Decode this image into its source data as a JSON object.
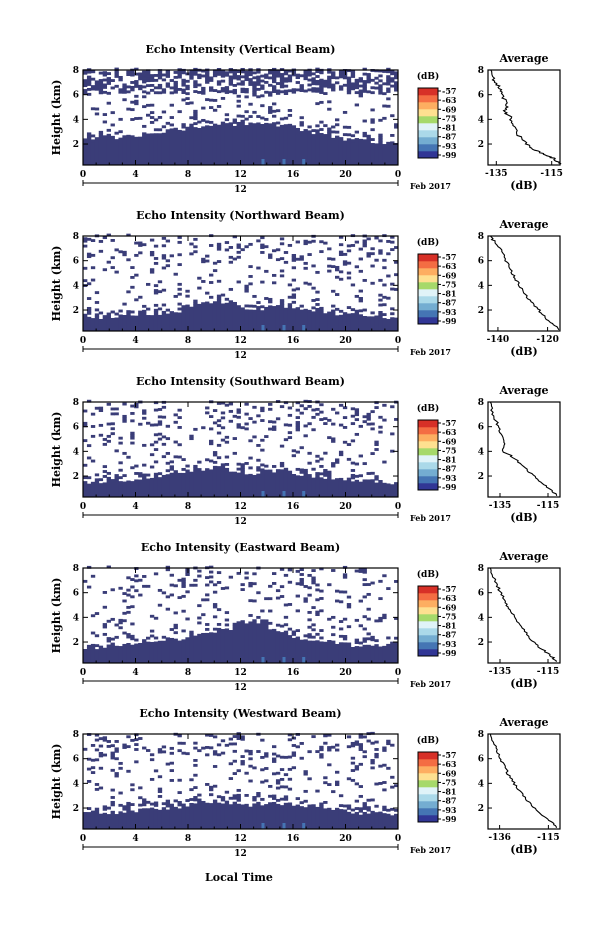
{
  "common": {
    "date_suffix": "Feb 2017",
    "day_label": "12",
    "xlabel": "Local Time",
    "ylabel": "Height (km)",
    "colorbar_unit": "(dB)",
    "avg_title": "Average",
    "avg_xlabel": "(dB)",
    "x_ticks": [
      "0",
      "4",
      "8",
      "12",
      "16",
      "20",
      "0"
    ],
    "y_ticks": [
      "2",
      "4",
      "6",
      "8"
    ],
    "colorbar_ticks": [
      "-57",
      "-63",
      "-69",
      "-75",
      "-81",
      "-87",
      "-93",
      "-99"
    ],
    "colorscale": [
      "#313695",
      "#4575b4",
      "#74add1",
      "#abd9e9",
      "#e0f3f8",
      "#a6d96a",
      "#fee090",
      "#fdae61",
      "#f46d43",
      "#d73027"
    ]
  },
  "chart_data": [
    {
      "type": "heatmap",
      "title": "Echo Intensity (Vertical Beam)",
      "x_range_hours": [
        0,
        24
      ],
      "y_range_km": [
        0.3,
        8.0
      ],
      "low_layer_top_km": [
        2.2,
        2.3,
        2.5,
        2.6,
        2.7,
        2.9,
        3.0,
        3.2,
        3.3,
        3.4,
        3.5,
        3.6,
        3.7,
        3.6,
        3.6,
        3.4,
        3.2,
        3.0,
        2.8,
        2.6,
        2.4,
        2.3,
        2.2,
        2.1,
        2.0
      ],
      "upper_cloud": true,
      "avg_x_ticks": [
        "-135",
        "-115"
      ],
      "avg_x_range": [
        -138,
        -112
      ],
      "avg_profile": [
        [
          -112,
          0.4
        ],
        [
          -114,
          0.8
        ],
        [
          -117,
          1.1
        ],
        [
          -121,
          1.5
        ],
        [
          -124,
          2.0
        ],
        [
          -127,
          2.7
        ],
        [
          -129,
          3.5
        ],
        [
          -130,
          4.2
        ],
        [
          -132,
          4.6
        ],
        [
          -131,
          5.2
        ],
        [
          -133,
          6.0
        ],
        [
          -134,
          6.6
        ],
        [
          -136,
          7.2
        ],
        [
          -137,
          8.0
        ]
      ]
    },
    {
      "type": "heatmap",
      "title": "Echo Intensity (Northward Beam)",
      "x_range_hours": [
        0,
        24
      ],
      "y_range_km": [
        0.3,
        8.0
      ],
      "low_layer_top_km": [
        1.4,
        1.4,
        1.5,
        1.5,
        1.6,
        1.7,
        1.8,
        1.9,
        2.2,
        2.5,
        2.8,
        2.4,
        2.1,
        2.0,
        2.2,
        2.4,
        2.1,
        1.9,
        1.8,
        1.7,
        1.6,
        1.5,
        1.5,
        1.4,
        1.4
      ],
      "upper_cloud": false,
      "avg_x_ticks": [
        "-140",
        "-120"
      ],
      "avg_x_range": [
        -144,
        -115
      ],
      "avg_profile": [
        [
          -115,
          0.4
        ],
        [
          -118,
          0.9
        ],
        [
          -121,
          1.4
        ],
        [
          -124,
          2.1
        ],
        [
          -127,
          2.8
        ],
        [
          -130,
          3.5
        ],
        [
          -132,
          4.2
        ],
        [
          -134,
          4.9
        ],
        [
          -136,
          5.7
        ],
        [
          -138,
          6.6
        ],
        [
          -141,
          7.4
        ],
        [
          -143,
          8.0
        ]
      ]
    },
    {
      "type": "heatmap",
      "title": "Echo Intensity (Southward Beam)",
      "x_range_hours": [
        0,
        24
      ],
      "y_range_km": [
        0.3,
        8.0
      ],
      "low_layer_top_km": [
        1.5,
        1.5,
        1.6,
        1.7,
        1.8,
        1.9,
        2.0,
        2.2,
        2.4,
        2.6,
        2.7,
        2.5,
        2.3,
        2.2,
        2.4,
        2.5,
        2.2,
        2.0,
        1.9,
        1.8,
        1.7,
        1.6,
        1.6,
        1.5,
        1.5
      ],
      "upper_cloud": false,
      "avg_x_ticks": [
        "-135",
        "-115"
      ],
      "avg_x_range": [
        -140,
        -110
      ],
      "avg_profile": [
        [
          -111,
          0.4
        ],
        [
          -114,
          0.9
        ],
        [
          -118,
          1.5
        ],
        [
          -122,
          2.2
        ],
        [
          -126,
          2.9
        ],
        [
          -130,
          3.6
        ],
        [
          -134,
          4.0
        ],
        [
          -133,
          4.6
        ],
        [
          -135,
          5.4
        ],
        [
          -136,
          6.2
        ],
        [
          -138,
          7.0
        ],
        [
          -139,
          8.0
        ]
      ]
    },
    {
      "type": "heatmap",
      "title": "Echo Intensity (Eastward Beam)",
      "x_range_hours": [
        0,
        24
      ],
      "y_range_km": [
        0.3,
        8.0
      ],
      "low_layer_top_km": [
        1.5,
        1.6,
        1.7,
        1.8,
        1.9,
        2.0,
        2.1,
        2.2,
        2.4,
        2.6,
        2.8,
        3.0,
        3.5,
        3.6,
        3.2,
        2.7,
        2.4,
        2.2,
        2.0,
        1.9,
        1.8,
        1.7,
        1.6,
        1.5,
        1.5
      ],
      "upper_cloud": false,
      "avg_x_ticks": [
        "-135",
        "-115"
      ],
      "avg_x_range": [
        -140,
        -110
      ],
      "avg_profile": [
        [
          -111,
          0.4
        ],
        [
          -114,
          0.9
        ],
        [
          -118,
          1.5
        ],
        [
          -122,
          2.2
        ],
        [
          -125,
          3.0
        ],
        [
          -128,
          3.8
        ],
        [
          -131,
          4.6
        ],
        [
          -133,
          5.3
        ],
        [
          -135,
          6.1
        ],
        [
          -137,
          6.9
        ],
        [
          -139,
          8.0
        ]
      ]
    },
    {
      "type": "heatmap",
      "title": "Echo Intensity (Westward Beam)",
      "x_range_hours": [
        0,
        24
      ],
      "y_range_km": [
        0.3,
        8.0
      ],
      "low_layer_top_km": [
        1.5,
        1.5,
        1.6,
        1.7,
        1.8,
        1.9,
        2.0,
        2.1,
        2.3,
        2.5,
        2.6,
        2.4,
        2.3,
        2.2,
        2.4,
        2.3,
        2.1,
        2.0,
        1.9,
        1.8,
        1.7,
        1.6,
        1.6,
        1.5,
        1.5
      ],
      "upper_cloud": false,
      "avg_x_ticks": [
        "-136",
        "-115"
      ],
      "avg_x_range": [
        -141,
        -110
      ],
      "avg_profile": [
        [
          -111,
          0.4
        ],
        [
          -114,
          0.9
        ],
        [
          -118,
          1.5
        ],
        [
          -122,
          2.2
        ],
        [
          -126,
          3.0
        ],
        [
          -129,
          3.8
        ],
        [
          -132,
          4.6
        ],
        [
          -134,
          5.4
        ],
        [
          -136,
          6.2
        ],
        [
          -138,
          7.0
        ],
        [
          -140,
          8.0
        ]
      ]
    }
  ]
}
